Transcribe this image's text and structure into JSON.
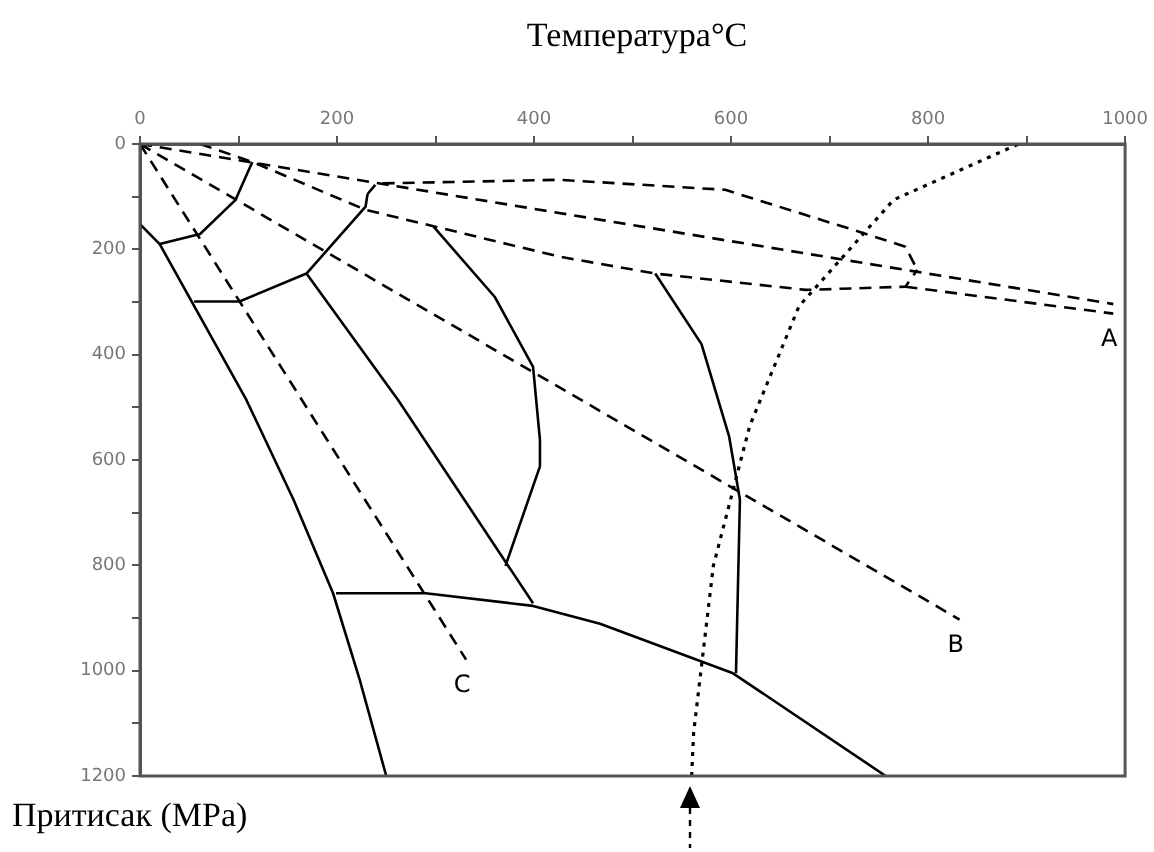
{
  "chart_data": {
    "type": "line",
    "title": "Температура°C",
    "ylabel": "Притисак (MPa)",
    "marker": "none",
    "xlim": [
      0,
      1000
    ],
    "ylim": [
      1200,
      0
    ],
    "xticks": [
      0,
      {
        "value": 100,
        "label": null
      },
      200,
      {
        "value": 300,
        "label": null
      },
      400,
      {
        "value": 500,
        "label": null
      },
      600,
      {
        "value": 700,
        "label": null
      },
      800,
      {
        "value": 900,
        "label": null
      },
      1000
    ],
    "yticks": [
      0,
      {
        "value": 100,
        "label": null
      },
      200,
      {
        "value": 300,
        "label": null
      },
      400,
      {
        "value": 500,
        "label": null
      },
      600,
      {
        "value": 700,
        "label": null
      },
      800,
      {
        "value": 900,
        "label": null
      },
      1000,
      {
        "value": 1100,
        "label": null
      },
      1200
    ],
    "series": [
      {
        "color": "#000000",
        "line_style": "dashed",
        "x": [
          61,
          114,
          229,
          426,
          523,
          676,
          777,
          789
        ],
        "values": [
          0,
          34,
          125,
          214,
          246,
          277,
          271,
          239
        ]
      },
      {
        "color": "#000000",
        "line_style": "solid",
        "x": [
          114,
          97,
          61,
          20
        ],
        "values": [
          34,
          106,
          171,
          190
        ]
      },
      {
        "color": "#000000",
        "line_style": "solid",
        "x": [
          0,
          20,
          108,
          156,
          196,
          223,
          250
        ],
        "values": [
          152,
          190,
          486,
          676,
          853,
          1017,
          1200
        ]
      },
      {
        "color": "#000000",
        "line_style": "solid",
        "x": [
          231,
          229,
          169,
          101,
          55
        ],
        "values": [
          95,
          119,
          246,
          299,
          299
        ]
      },
      {
        "color": "#000000",
        "line_style": "dashed",
        "x": [
          231,
          240,
          426,
          594,
          724,
          777,
          789
        ],
        "values": [
          95,
          75,
          68,
          87,
          163,
          195,
          239
        ]
      },
      {
        "color": "#000000",
        "line_style": "dashed",
        "x": [
          777,
          988
        ],
        "values": [
          271,
          322
        ]
      },
      {
        "color": "#000000",
        "line_style": "dashed",
        "x": [
          0,
          988
        ],
        "values": [
          0,
          304
        ]
      },
      {
        "color": "#000000",
        "line_style": "dashed",
        "x": [
          0,
          832
        ],
        "values": [
          0,
          903
        ]
      },
      {
        "color": "#000000",
        "line_style": "dashed",
        "x": [
          0,
          331
        ],
        "values": [
          0,
          979
        ]
      },
      {
        "color": "#000000",
        "line_style": "solid",
        "x": [
          169,
          262,
          399
        ],
        "values": [
          246,
          486,
          872
        ]
      },
      {
        "color": "#000000",
        "line_style": "solid",
        "x": [
          298,
          360,
          399,
          406,
          406,
          371
        ],
        "values": [
          157,
          290,
          423,
          562,
          612,
          801
        ]
      },
      {
        "color": "#000000",
        "line_style": "solid",
        "x": [
          199,
          290,
          399,
          467,
          602,
          757
        ],
        "values": [
          853,
          853,
          877,
          911,
          1005,
          1200
        ]
      },
      {
        "color": "#000000",
        "line_style": "solid",
        "x": [
          523,
          570,
          598,
          609,
          605
        ],
        "values": [
          246,
          380,
          555,
          675,
          1005
        ]
      },
      {
        "color": "#000000",
        "line_style": "dotted",
        "x": [
          560,
          562,
          582,
          619,
          669,
          765,
          892
        ],
        "values": [
          1200,
          1118,
          801,
          535,
          308,
          106,
          0
        ]
      }
    ],
    "annotations": [
      {
        "text": "A",
        "x": 988,
        "y": 322
      },
      {
        "text": "B",
        "x": 832,
        "y": 903
      },
      {
        "text": "C",
        "x": 331,
        "y": 979
      }
    ]
  }
}
